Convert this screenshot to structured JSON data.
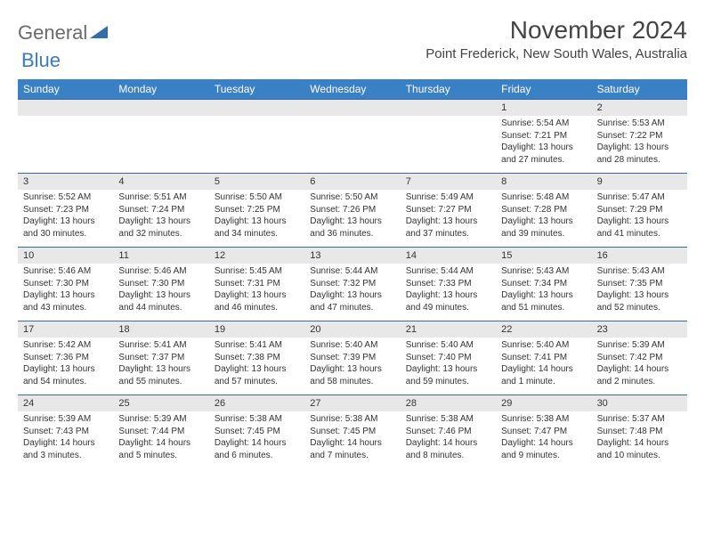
{
  "logo": {
    "text1": "General",
    "text2": "Blue"
  },
  "title": "November 2024",
  "subtitle": "Point Frederick, New South Wales, Australia",
  "colors": {
    "header_bg": "#3a80c4",
    "header_text": "#ffffff",
    "row_divider": "#3a6a9a",
    "daynum_bg": "#e8e8e8",
    "body_text": "#333333",
    "logo_gray": "#6a6a6a",
    "logo_blue": "#3a7abf"
  },
  "weekdays": [
    "Sunday",
    "Monday",
    "Tuesday",
    "Wednesday",
    "Thursday",
    "Friday",
    "Saturday"
  ],
  "weeks": [
    [
      null,
      null,
      null,
      null,
      null,
      {
        "n": "1",
        "sr": "5:54 AM",
        "ss": "7:21 PM",
        "dl": "13 hours and 27 minutes."
      },
      {
        "n": "2",
        "sr": "5:53 AM",
        "ss": "7:22 PM",
        "dl": "13 hours and 28 minutes."
      }
    ],
    [
      {
        "n": "3",
        "sr": "5:52 AM",
        "ss": "7:23 PM",
        "dl": "13 hours and 30 minutes."
      },
      {
        "n": "4",
        "sr": "5:51 AM",
        "ss": "7:24 PM",
        "dl": "13 hours and 32 minutes."
      },
      {
        "n": "5",
        "sr": "5:50 AM",
        "ss": "7:25 PM",
        "dl": "13 hours and 34 minutes."
      },
      {
        "n": "6",
        "sr": "5:50 AM",
        "ss": "7:26 PM",
        "dl": "13 hours and 36 minutes."
      },
      {
        "n": "7",
        "sr": "5:49 AM",
        "ss": "7:27 PM",
        "dl": "13 hours and 37 minutes."
      },
      {
        "n": "8",
        "sr": "5:48 AM",
        "ss": "7:28 PM",
        "dl": "13 hours and 39 minutes."
      },
      {
        "n": "9",
        "sr": "5:47 AM",
        "ss": "7:29 PM",
        "dl": "13 hours and 41 minutes."
      }
    ],
    [
      {
        "n": "10",
        "sr": "5:46 AM",
        "ss": "7:30 PM",
        "dl": "13 hours and 43 minutes."
      },
      {
        "n": "11",
        "sr": "5:46 AM",
        "ss": "7:30 PM",
        "dl": "13 hours and 44 minutes."
      },
      {
        "n": "12",
        "sr": "5:45 AM",
        "ss": "7:31 PM",
        "dl": "13 hours and 46 minutes."
      },
      {
        "n": "13",
        "sr": "5:44 AM",
        "ss": "7:32 PM",
        "dl": "13 hours and 47 minutes."
      },
      {
        "n": "14",
        "sr": "5:44 AM",
        "ss": "7:33 PM",
        "dl": "13 hours and 49 minutes."
      },
      {
        "n": "15",
        "sr": "5:43 AM",
        "ss": "7:34 PM",
        "dl": "13 hours and 51 minutes."
      },
      {
        "n": "16",
        "sr": "5:43 AM",
        "ss": "7:35 PM",
        "dl": "13 hours and 52 minutes."
      }
    ],
    [
      {
        "n": "17",
        "sr": "5:42 AM",
        "ss": "7:36 PM",
        "dl": "13 hours and 54 minutes."
      },
      {
        "n": "18",
        "sr": "5:41 AM",
        "ss": "7:37 PM",
        "dl": "13 hours and 55 minutes."
      },
      {
        "n": "19",
        "sr": "5:41 AM",
        "ss": "7:38 PM",
        "dl": "13 hours and 57 minutes."
      },
      {
        "n": "20",
        "sr": "5:40 AM",
        "ss": "7:39 PM",
        "dl": "13 hours and 58 minutes."
      },
      {
        "n": "21",
        "sr": "5:40 AM",
        "ss": "7:40 PM",
        "dl": "13 hours and 59 minutes."
      },
      {
        "n": "22",
        "sr": "5:40 AM",
        "ss": "7:41 PM",
        "dl": "14 hours and 1 minute."
      },
      {
        "n": "23",
        "sr": "5:39 AM",
        "ss": "7:42 PM",
        "dl": "14 hours and 2 minutes."
      }
    ],
    [
      {
        "n": "24",
        "sr": "5:39 AM",
        "ss": "7:43 PM",
        "dl": "14 hours and 3 minutes."
      },
      {
        "n": "25",
        "sr": "5:39 AM",
        "ss": "7:44 PM",
        "dl": "14 hours and 5 minutes."
      },
      {
        "n": "26",
        "sr": "5:38 AM",
        "ss": "7:45 PM",
        "dl": "14 hours and 6 minutes."
      },
      {
        "n": "27",
        "sr": "5:38 AM",
        "ss": "7:45 PM",
        "dl": "14 hours and 7 minutes."
      },
      {
        "n": "28",
        "sr": "5:38 AM",
        "ss": "7:46 PM",
        "dl": "14 hours and 8 minutes."
      },
      {
        "n": "29",
        "sr": "5:38 AM",
        "ss": "7:47 PM",
        "dl": "14 hours and 9 minutes."
      },
      {
        "n": "30",
        "sr": "5:37 AM",
        "ss": "7:48 PM",
        "dl": "14 hours and 10 minutes."
      }
    ]
  ],
  "labels": {
    "sunrise": "Sunrise: ",
    "sunset": "Sunset: ",
    "daylight": "Daylight: "
  }
}
